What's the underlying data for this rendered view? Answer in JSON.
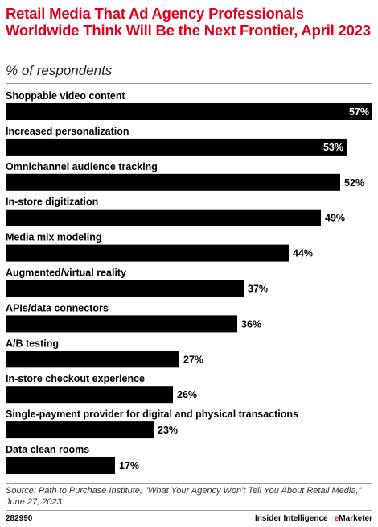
{
  "header": {
    "title": "Retail Media That Ad Agency Professionals Worldwide Think Will Be the Next Frontier, April 2023",
    "subtitle": "% of respondents"
  },
  "chart_data": {
    "type": "bar",
    "orientation": "horizontal",
    "categories": [
      "Shoppable video content",
      "Increased personalization",
      "Omnichannel audience tracking",
      "In-store digitization",
      "Media mix modeling",
      "Augmented/virtual reality",
      "APIs/data connectors",
      "A/B testing",
      "In-store checkout experience",
      "Single-payment provider for digital and physical transactions",
      "Data clean rooms"
    ],
    "values": [
      57,
      53,
      52,
      49,
      44,
      37,
      36,
      27,
      26,
      23,
      17
    ],
    "value_suffix": "%",
    "xlim": [
      0,
      57
    ],
    "bar_color": "#000000",
    "grid": false
  },
  "footer": {
    "source": "Source: Path to Purchase Institute, \"What Your Agency Won't Tell You About Retail Media,\" June 27, 2023",
    "chart_id": "282990",
    "brand_left": "Insider Intelligence",
    "brand_sep": " | ",
    "brand_e": "e",
    "brand_right": "Marketer"
  },
  "colors": {
    "accent": "#e2001a",
    "bar": "#000000"
  }
}
